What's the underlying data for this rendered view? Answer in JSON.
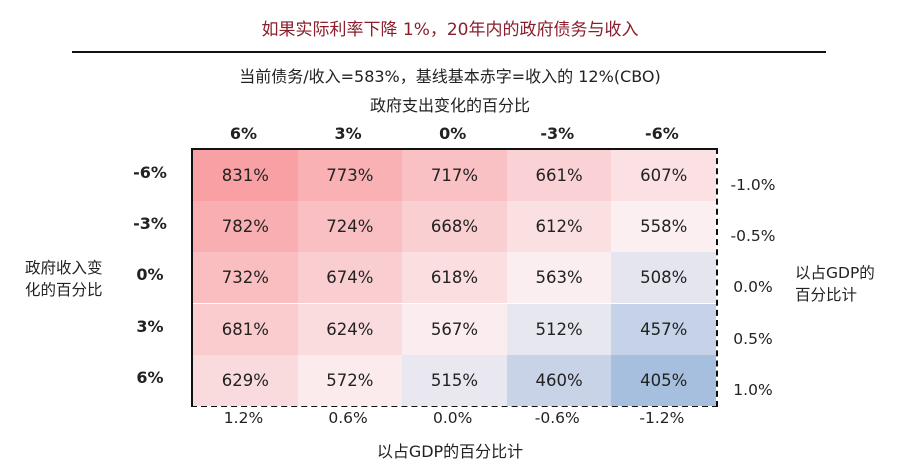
{
  "title": "如果实际利率下降 1%，20年内的政府债务与收入",
  "subtitle": "当前债务/收入=583%，基线基本赤字=收入的 12%(CBO)",
  "colors": {
    "title": "#8a1e2c",
    "high": "#f9a0a4",
    "mid": "#fbf3f5",
    "low": "#a7bfdf"
  },
  "chart_data": {
    "type": "heatmap",
    "x_title": "政府支出变化的百分比",
    "x_categories": [
      "6%",
      "3%",
      "0%",
      "-3%",
      "-6%"
    ],
    "x_secondary_title": "以占GDP的百分比计",
    "x_secondary_categories": [
      "1.2%",
      "0.6%",
      "0.0%",
      "-0.6%",
      "-1.2%"
    ],
    "y_title_lines": [
      "政府收入变",
      "化的百分比"
    ],
    "y_categories": [
      "-6%",
      "-3%",
      "0%",
      "3%",
      "6%"
    ],
    "y_secondary_title_lines": [
      "以占GDP的",
      "百分比计"
    ],
    "y_secondary_categories": [
      "-1.0%",
      "-0.5%",
      "0.0%",
      "0.5%",
      "1.0%"
    ],
    "values": [
      [
        831,
        773,
        717,
        661,
        607
      ],
      [
        782,
        724,
        668,
        612,
        558
      ],
      [
        732,
        674,
        618,
        563,
        508
      ],
      [
        681,
        624,
        567,
        512,
        457
      ],
      [
        629,
        572,
        515,
        460,
        405
      ]
    ],
    "value_suffix": "%"
  }
}
